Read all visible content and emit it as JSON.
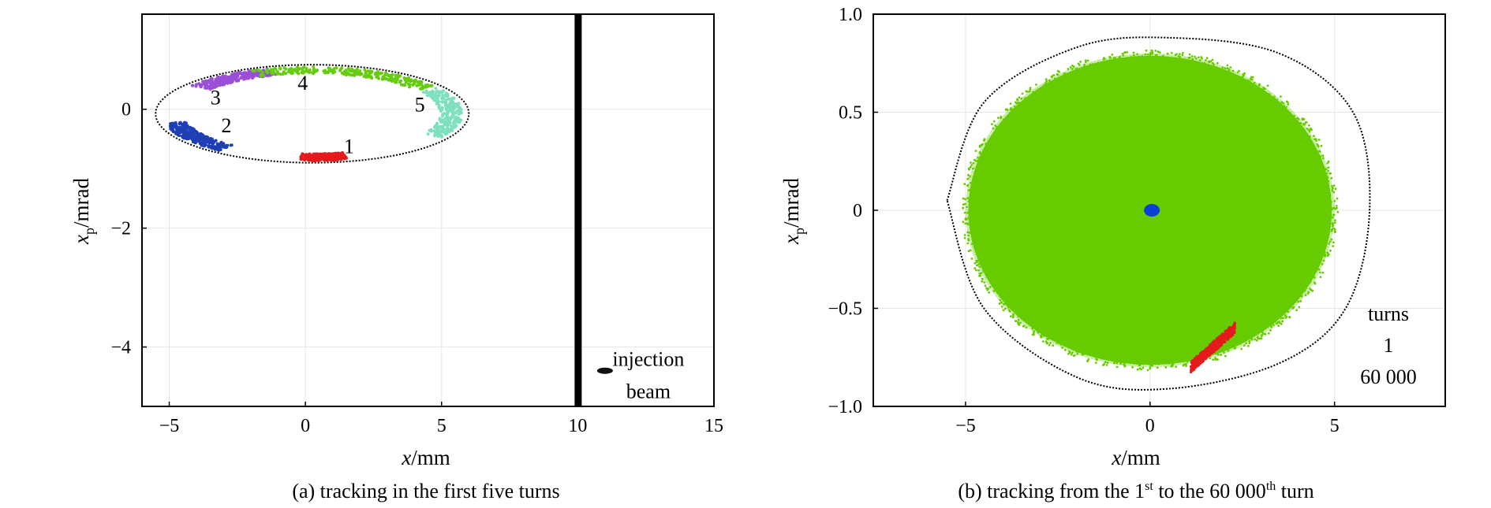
{
  "chart_data": [
    {
      "type": "scatter",
      "panel": "a",
      "caption": "(a) tracking in the first five turns",
      "xlabel_var": "x",
      "xlabel_unit": "/mm",
      "ylabel_var": "x",
      "ylabel_sub": "p",
      "ylabel_unit": "/mrad",
      "xlim": [
        -6,
        15
      ],
      "ylim": [
        -5,
        1.6
      ],
      "xticks": [
        -5,
        0,
        5,
        10,
        15
      ],
      "xtick_labels": [
        "−5",
        "0",
        "5",
        "10",
        "15"
      ],
      "yticks": [
        0,
        -2,
        -4
      ],
      "ytick_labels": [
        "0",
        "−2",
        "−4"
      ],
      "grid": true,
      "acceptance_ellipse": {
        "x_range": [
          -5.5,
          6.0
        ],
        "xp_range": [
          -0.9,
          0.75
        ],
        "color": "#000000"
      },
      "septum_x": 10.0,
      "injection_beam": {
        "x": 11.0,
        "xp": -4.4,
        "label_line1": "injection",
        "label_line2": "beam"
      },
      "turns": [
        {
          "label": "1",
          "color": "#e41a1c",
          "t_start": 4.63,
          "t_end": 4.95,
          "label_x": 1.6,
          "label_xp": -0.62
        },
        {
          "label": "2",
          "color": "#1f3fb4",
          "t_start": 3.35,
          "t_end": 4.05,
          "label_x": -2.9,
          "label_xp": -0.27
        },
        {
          "label": "3",
          "color": "#9b4fd6",
          "t_start": 1.85,
          "t_end": 2.5,
          "label_x": -3.3,
          "label_xp": 0.2
        },
        {
          "label": "4",
          "color": "#66cc11",
          "t_start": 0.62,
          "t_end": 1.98,
          "label_x": -0.1,
          "label_xp": 0.45
        },
        {
          "label": "5",
          "color": "#7fe0c0",
          "t_start": -0.52,
          "t_end": 0.58,
          "label_x": 4.2,
          "label_xp": 0.08
        }
      ]
    },
    {
      "type": "scatter",
      "panel": "b",
      "caption": "(b) tracking from the 1st to the 60 000th turn",
      "caption_parts": [
        "(b) tracking from the 1",
        "st",
        " to the 60 000",
        "th",
        " turn"
      ],
      "xlabel_var": "x",
      "xlabel_unit": "/mm",
      "ylabel_var": "x",
      "ylabel_sub": "p",
      "ylabel_unit": "/mrad",
      "xlim": [
        -7.5,
        8
      ],
      "ylim": [
        -1.0,
        1.0
      ],
      "xticks": [
        -5,
        0,
        5
      ],
      "xtick_labels": [
        "−5",
        "0",
        "5"
      ],
      "yticks": [
        1.0,
        0.5,
        0,
        -0.5,
        -1.0
      ],
      "ytick_labels": [
        "1.0",
        "0.5",
        "0",
        "−0.5",
        "−1.0"
      ],
      "grid": true,
      "acceptance_curve": [
        [
          -5.5,
          0.05
        ],
        [
          -4.5,
          0.55
        ],
        [
          -2.0,
          0.83
        ],
        [
          0.5,
          0.88
        ],
        [
          3.5,
          0.8
        ],
        [
          5.5,
          0.5
        ],
        [
          5.95,
          0.0
        ],
        [
          5.3,
          -0.5
        ],
        [
          3.5,
          -0.78
        ],
        [
          0.5,
          -0.91
        ],
        [
          -2.0,
          -0.85
        ],
        [
          -4.5,
          -0.5
        ],
        [
          -5.5,
          0.05
        ]
      ],
      "filled_region": {
        "color": "#66cc00",
        "center": [
          0.0,
          0.0
        ],
        "rx": 5.0,
        "ry": 0.8
      },
      "turn_first": {
        "label": "1",
        "color": "#e41a1c",
        "from": [
          1.1,
          -0.8
        ],
        "to": [
          2.3,
          -0.6
        ]
      },
      "turn_last": {
        "label": "60 000",
        "color": "#0a3fd8",
        "x": 0.05,
        "xp": 0.0
      },
      "legend": {
        "title": "turns",
        "placement": "bottom-right",
        "entries": [
          {
            "label": "1",
            "color": "#e41a1c"
          },
          {
            "label": "60 000",
            "color": "#0a3fd8"
          }
        ]
      }
    }
  ]
}
